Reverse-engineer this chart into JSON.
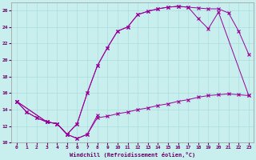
{
  "xlabel": "Windchill (Refroidissement éolien,°C)",
  "background_color": "#c8eeee",
  "grid_color": "#aadddd",
  "line_color": "#990099",
  "xlim": [
    -0.5,
    23.5
  ],
  "ylim": [
    10,
    27
  ],
  "xticks": [
    0,
    1,
    2,
    3,
    4,
    5,
    6,
    7,
    8,
    9,
    10,
    11,
    12,
    13,
    14,
    15,
    16,
    17,
    18,
    19,
    20,
    21,
    22,
    23
  ],
  "yticks": [
    10,
    12,
    14,
    16,
    18,
    20,
    22,
    24,
    26
  ],
  "series": [
    {
      "x": [
        0,
        1,
        2,
        3,
        4,
        5,
        6,
        7,
        8
      ],
      "y": [
        15.0,
        13.7,
        13.0,
        12.5,
        12.3,
        11.0,
        10.5,
        11.0,
        13.3
      ]
    },
    {
      "x": [
        0,
        1,
        2,
        3,
        4,
        5,
        6,
        7,
        8,
        9,
        10,
        11,
        12,
        13,
        14,
        15,
        16,
        17,
        18,
        19,
        20,
        21,
        22,
        23
      ],
      "y": [
        15.0,
        13.7,
        13.0,
        12.5,
        12.3,
        11.0,
        10.5,
        11.0,
        13.0,
        13.2,
        13.5,
        13.7,
        14.0,
        14.2,
        14.5,
        14.7,
        15.0,
        15.2,
        15.5,
        15.7,
        15.8,
        15.9,
        15.8,
        15.7
      ]
    },
    {
      "x": [
        0,
        3,
        4,
        5,
        6,
        7,
        8,
        9,
        10,
        11,
        12,
        13,
        14,
        15,
        16,
        17,
        18,
        19,
        20,
        21,
        22,
        23
      ],
      "y": [
        15.0,
        12.5,
        12.3,
        11.0,
        12.3,
        16.0,
        19.3,
        21.5,
        23.5,
        24.0,
        25.5,
        25.9,
        26.2,
        26.4,
        26.5,
        26.4,
        26.3,
        26.2,
        26.2,
        25.7,
        23.5,
        20.7
      ]
    },
    {
      "x": [
        0,
        3,
        4,
        5,
        6,
        7,
        8,
        9,
        10,
        11,
        12,
        13,
        14,
        15,
        16,
        17,
        18,
        19,
        20,
        23
      ],
      "y": [
        15.0,
        12.5,
        12.3,
        11.0,
        12.3,
        16.0,
        19.3,
        21.5,
        23.5,
        24.0,
        25.5,
        25.9,
        26.2,
        26.4,
        26.5,
        26.4,
        25.0,
        23.8,
        25.8,
        15.7
      ]
    }
  ]
}
